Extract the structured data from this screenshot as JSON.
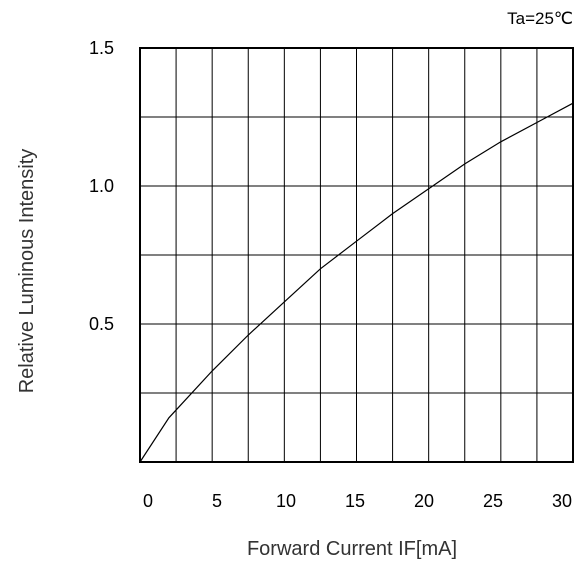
{
  "chart_data": {
    "type": "line",
    "title": "",
    "annotation": "Ta=25℃",
    "xlabel": "Forward Current IF[mA]",
    "ylabel": "Relative Luminous Intensity",
    "xlim": [
      0,
      30
    ],
    "ylim": [
      0,
      1.5
    ],
    "x_ticks": [
      "0",
      "5",
      "10",
      "15",
      "20",
      "25",
      "30"
    ],
    "y_ticks": [
      {
        "value": 0.5,
        "label": "0.5"
      },
      {
        "value": 1.0,
        "label": "1.0"
      },
      {
        "value": 1.5,
        "label": "1.5"
      }
    ],
    "grid": true,
    "series": [
      {
        "x": [
          0,
          2,
          5,
          7.5,
          10,
          12.5,
          15,
          17.5,
          20,
          22.5,
          25,
          27.5,
          30
        ],
        "y": [
          0,
          0.16,
          0.33,
          0.46,
          0.58,
          0.7,
          0.8,
          0.9,
          0.99,
          1.08,
          1.16,
          1.23,
          1.3
        ]
      }
    ]
  }
}
